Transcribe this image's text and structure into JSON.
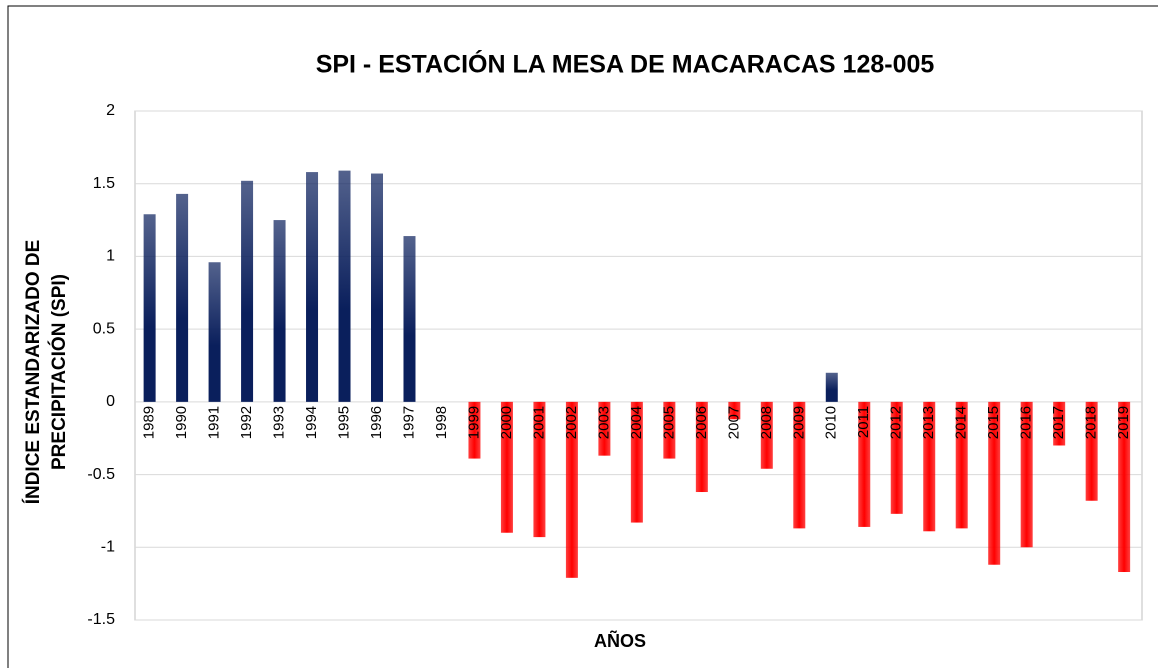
{
  "chart_data": {
    "type": "bar",
    "title": "SPI - ESTACIÓN LA MESA DE MACARACAS 128-005",
    "xlabel": "AÑOS",
    "ylabel": [
      "ÍNDICE ESTANDARIZADO DE",
      "PRECIPITACIÓN (SPI)"
    ],
    "categories": [
      "1989",
      "1990",
      "1991",
      "1992",
      "1993",
      "1994",
      "1995",
      "1996",
      "1997",
      "1998",
      "1999",
      "2000",
      "2001",
      "2002",
      "2003",
      "2004",
      "2005",
      "2006",
      "2007",
      "2008",
      "2009",
      "2010",
      "2011",
      "2012",
      "2013",
      "2014",
      "2015",
      "2016",
      "2017",
      "2018",
      "2019"
    ],
    "values": [
      1.29,
      1.43,
      0.96,
      1.52,
      1.25,
      1.58,
      1.59,
      1.57,
      1.14,
      0,
      -0.39,
      -0.9,
      -0.93,
      -1.21,
      -0.37,
      -0.83,
      -0.39,
      -0.62,
      -0.12,
      -0.46,
      -0.87,
      0.2,
      -0.86,
      -0.77,
      -0.89,
      -0.87,
      -1.12,
      -1.0,
      -0.3,
      -0.68,
      -1.17
    ],
    "positive_color": "#0a1f5c",
    "negative_color": "#ff0000",
    "ylim": [
      -1.5,
      2
    ],
    "yticks": [
      -1.5,
      -1,
      -0.5,
      0,
      0.5,
      1,
      1.5,
      2
    ],
    "grid": true
  }
}
